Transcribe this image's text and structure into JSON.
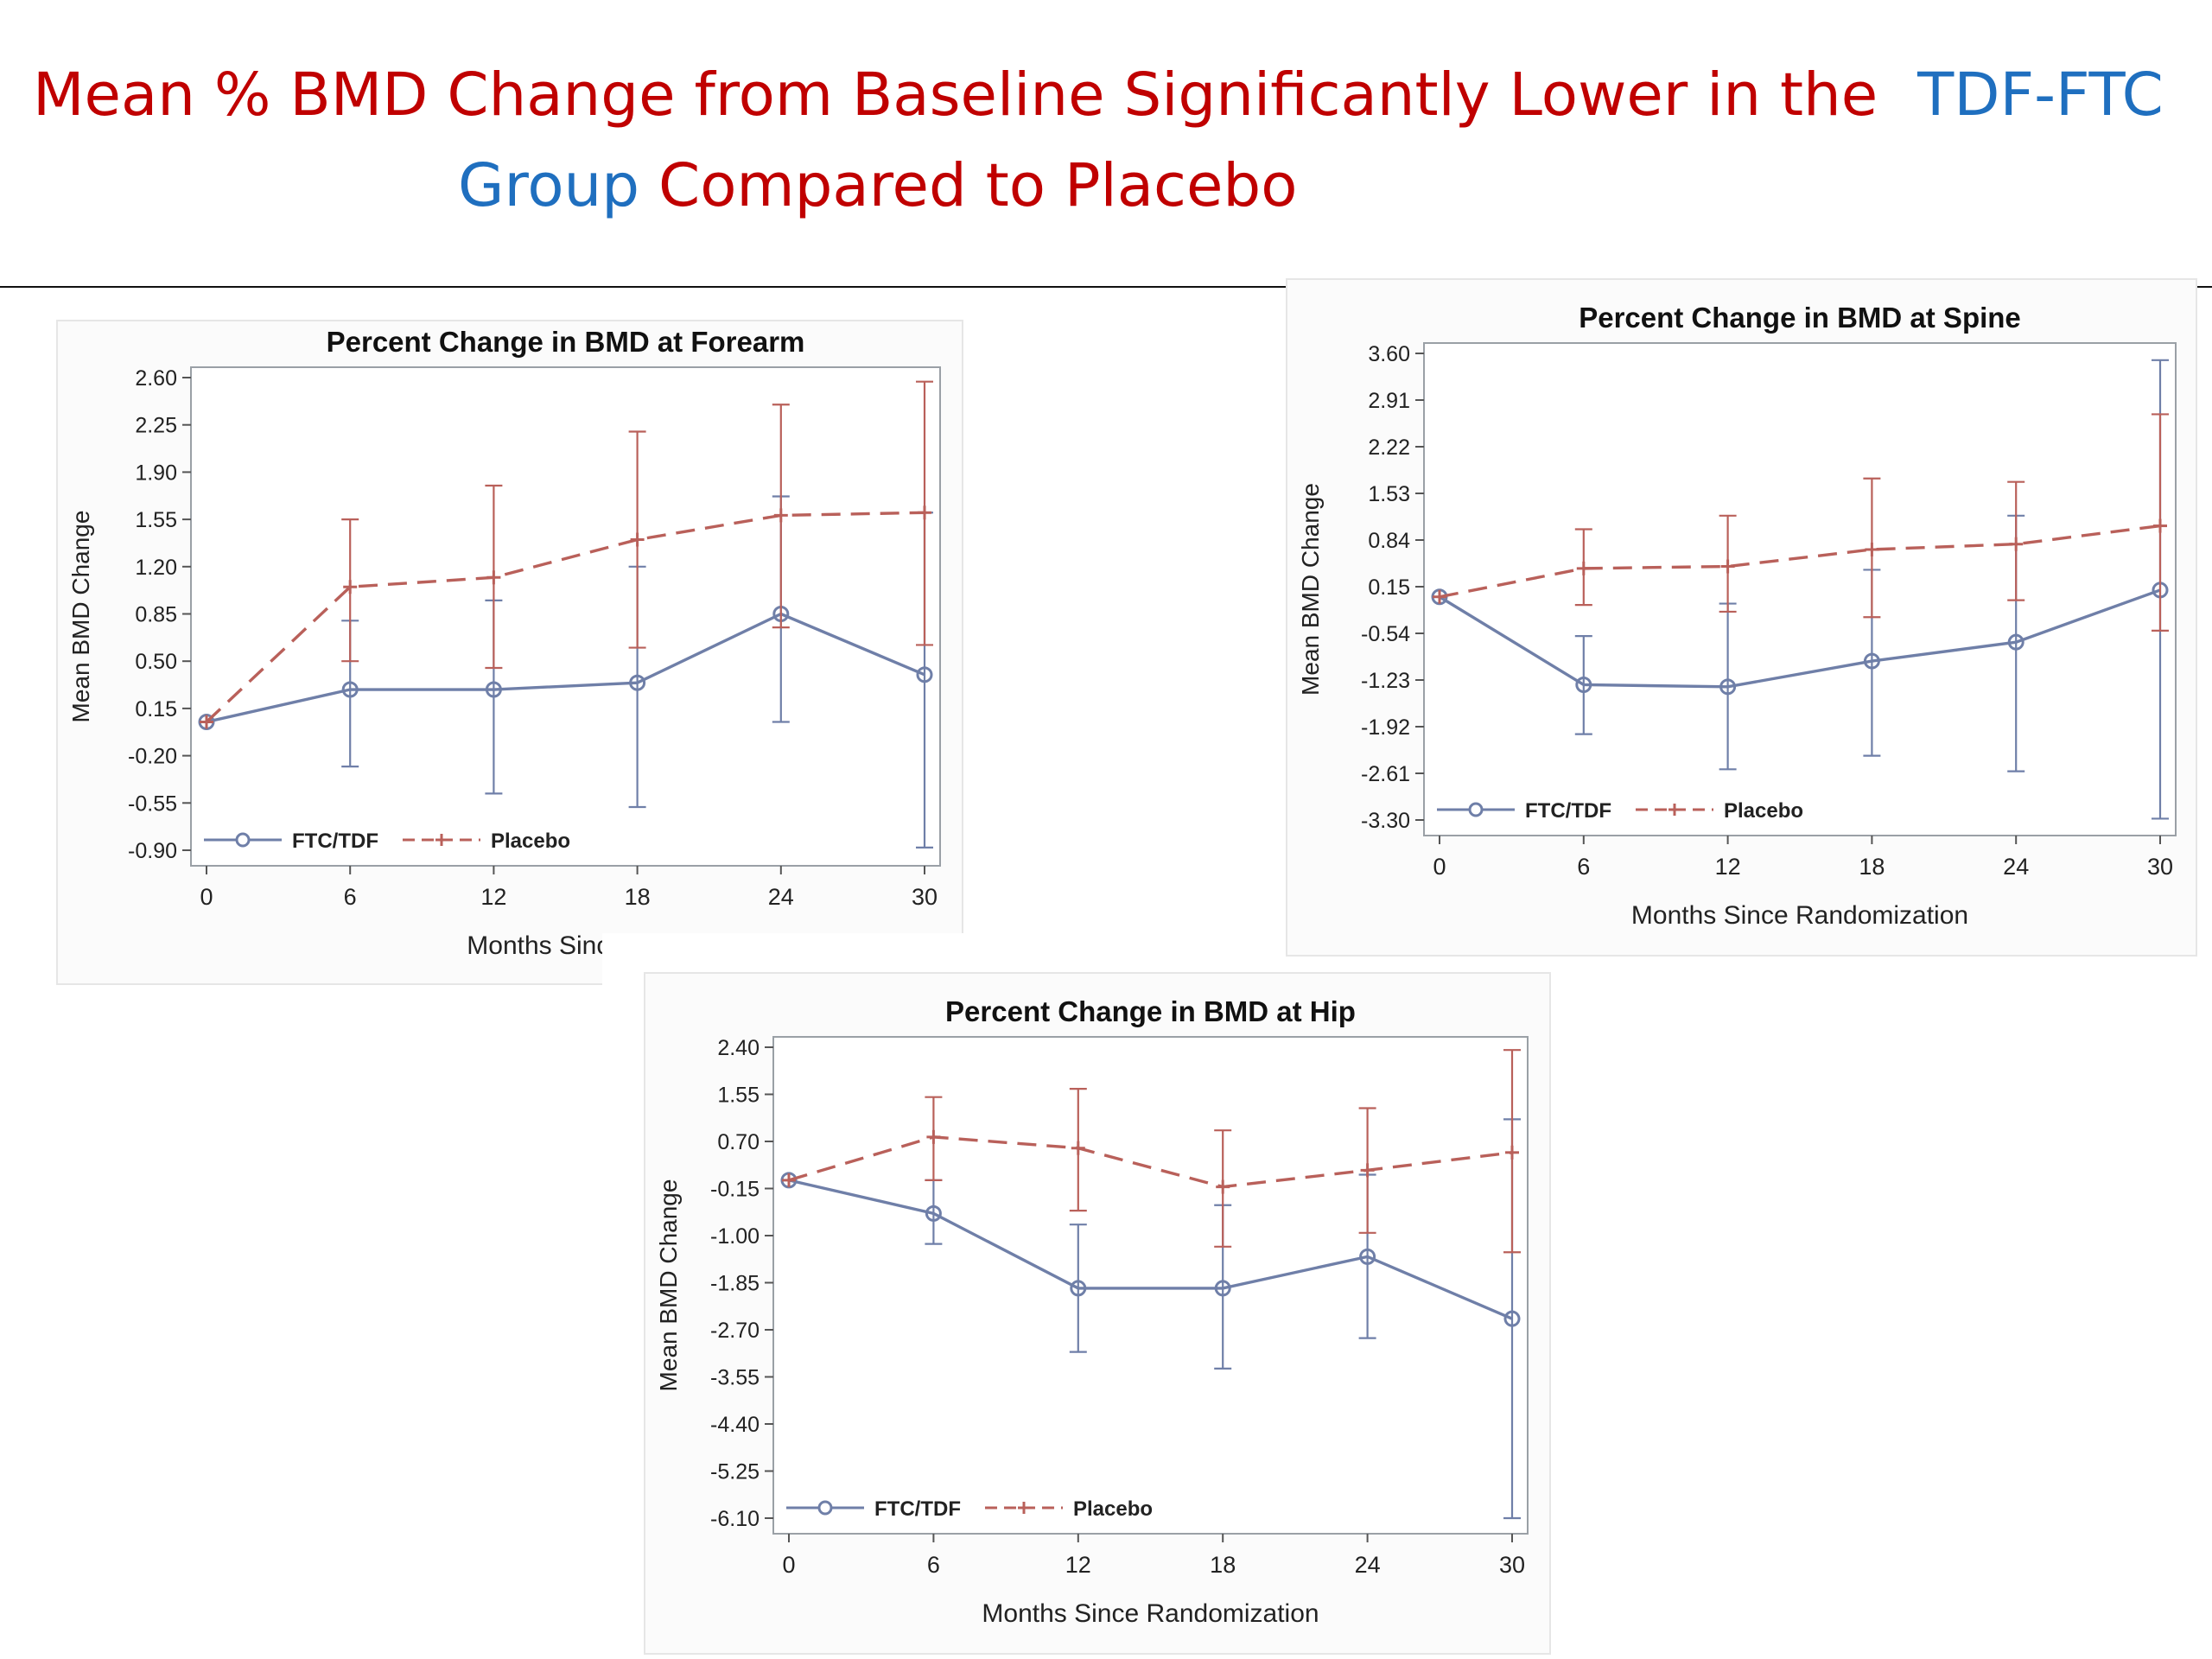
{
  "slide": {
    "title_line1_red": "Mean % BMD Change from Baseline Significantly Lower in the",
    "title_line1_blue": "TDF-FTC",
    "title_line2_blue": "Group",
    "title_line2_red": "Compared to Placebo",
    "colors": {
      "red": "#c00000",
      "blue": "#1f6fbf"
    }
  },
  "chart_data": [
    {
      "type": "line",
      "title": "Percent Change in BMD at Forearm",
      "xlabel": "Months Since Ra",
      "ylabel": "Mean BMD Change",
      "x": [
        0,
        6,
        12,
        18,
        24,
        30
      ],
      "xticks": [
        "0",
        "6",
        "12",
        "18",
        "24",
        "30"
      ],
      "yticks": [
        "2.60",
        "2.25",
        "1.90",
        "1.55",
        "1.20",
        "0.85",
        "0.50",
        "0.15",
        "-0.20",
        "-0.55",
        "-0.90"
      ],
      "ylim": [
        -0.9,
        2.6
      ],
      "grid": false,
      "legend": "bottom-left",
      "series": [
        {
          "name": "FTC/TDF",
          "color": "#6f7fa8",
          "dash": "solid",
          "marker": "circle",
          "values": [
            0.05,
            0.29,
            0.29,
            0.34,
            0.85,
            0.4
          ],
          "lower": [
            0.05,
            -0.28,
            -0.48,
            -0.58,
            0.05,
            -0.88
          ],
          "upper": [
            0.05,
            0.8,
            0.95,
            1.2,
            1.72,
            1.6
          ]
        },
        {
          "name": "Placebo",
          "color": "#b9605a",
          "dash": "dashed",
          "marker": "plus",
          "values": [
            0.05,
            1.05,
            1.12,
            1.4,
            1.58,
            1.6
          ],
          "lower": [
            0.05,
            0.5,
            0.45,
            0.6,
            0.75,
            0.62
          ],
          "upper": [
            0.05,
            1.55,
            1.8,
            2.2,
            2.4,
            2.57
          ]
        }
      ]
    },
    {
      "type": "line",
      "title": "Percent Change in BMD at Spine",
      "xlabel": "Months Since Randomization",
      "ylabel": "Mean BMD Change",
      "x": [
        0,
        6,
        12,
        18,
        24,
        30
      ],
      "xticks": [
        "0",
        "6",
        "12",
        "18",
        "24",
        "30"
      ],
      "yticks": [
        "3.60",
        "2.91",
        "2.22",
        "1.53",
        "0.84",
        "0.15",
        "-0.54",
        "-1.23",
        "-1.92",
        "-2.61",
        "-3.30"
      ],
      "ylim": [
        -3.3,
        3.6
      ],
      "grid": false,
      "legend": "bottom-left",
      "series": [
        {
          "name": "FTC/TDF",
          "color": "#6f7fa8",
          "dash": "solid",
          "marker": "circle",
          "values": [
            0.0,
            -1.3,
            -1.33,
            -0.95,
            -0.67,
            0.1
          ],
          "lower": [
            0.0,
            -2.03,
            -2.55,
            -2.35,
            -2.58,
            -3.28
          ],
          "upper": [
            0.0,
            -0.58,
            -0.1,
            0.4,
            1.2,
            3.5
          ]
        },
        {
          "name": "Placebo",
          "color": "#b9605a",
          "dash": "dashed",
          "marker": "plus",
          "values": [
            0.0,
            0.42,
            0.45,
            0.7,
            0.78,
            1.05
          ],
          "lower": [
            0.0,
            -0.12,
            -0.22,
            -0.3,
            -0.05,
            -0.5
          ],
          "upper": [
            0.0,
            1.0,
            1.2,
            1.75,
            1.7,
            2.7
          ]
        }
      ]
    },
    {
      "type": "line",
      "title": "Percent Change in BMD at Hip",
      "xlabel": "Months Since Randomization",
      "ylabel": "Mean BMD Change",
      "x": [
        0,
        6,
        12,
        18,
        24,
        30
      ],
      "xticks": [
        "0",
        "6",
        "12",
        "18",
        "24",
        "30"
      ],
      "yticks": [
        "2.40",
        "1.55",
        "0.70",
        "-0.15",
        "-1.00",
        "-1.85",
        "-2.70",
        "-3.55",
        "-4.40",
        "-5.25",
        "-6.10"
      ],
      "ylim": [
        -6.1,
        2.4
      ],
      "grid": false,
      "legend": "bottom-left",
      "series": [
        {
          "name": "FTC/TDF",
          "color": "#6f7fa8",
          "dash": "solid",
          "marker": "circle",
          "values": [
            0.0,
            -0.6,
            -1.95,
            -1.95,
            -1.38,
            -2.5
          ],
          "lower": [
            0.0,
            -1.15,
            -3.1,
            -3.4,
            -2.85,
            -6.1
          ],
          "upper": [
            0.0,
            0.0,
            -0.8,
            -0.45,
            0.1,
            1.1
          ]
        },
        {
          "name": "Placebo",
          "color": "#b9605a",
          "dash": "dashed",
          "marker": "plus",
          "values": [
            0.0,
            0.78,
            0.58,
            -0.12,
            0.18,
            0.5
          ],
          "lower": [
            0.0,
            0.0,
            -0.55,
            -1.2,
            -0.95,
            -1.3
          ],
          "upper": [
            0.0,
            1.5,
            1.65,
            0.9,
            1.3,
            2.35
          ]
        }
      ]
    }
  ]
}
